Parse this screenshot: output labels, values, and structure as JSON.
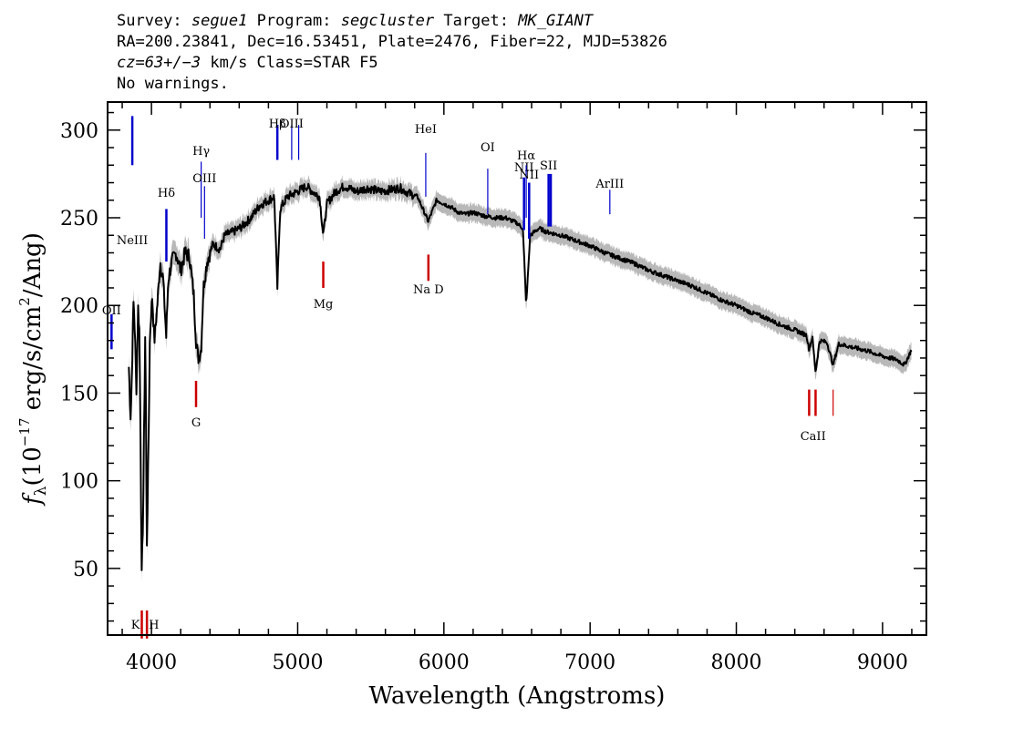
{
  "header": {
    "line1": {
      "survey_label": "Survey:",
      "survey": "segue1",
      "program_label": "Program:",
      "program": "segcluster",
      "target_label": "Target:",
      "target": "MK_GIANT"
    },
    "line2": "RA=200.23841, Dec=16.53451, Plate=2476, Fiber=22, MJD=53826",
    "line3": {
      "cz": "cz=63+/−3",
      "rest": "km/s Class=STAR F5"
    },
    "line4": "No warnings."
  },
  "chart_data": {
    "type": "line",
    "xlabel": "Wavelength (Angstroms)",
    "ylabel": "f_λ (10^-17 erg/s/cm^2/Ang)",
    "ylabel_parts": {
      "symbol": "f",
      "sub": "λ",
      "pre": "(10",
      "exp": "−17",
      "mid": " erg/s/cm",
      "exp2": "2",
      "post": "/Ang)"
    },
    "xlim": [
      3700,
      9300
    ],
    "ylim": [
      12,
      316
    ],
    "x_ticks": [
      4000,
      5000,
      6000,
      7000,
      8000,
      9000
    ],
    "y_ticks": [
      50,
      100,
      150,
      200,
      250,
      300
    ],
    "colors": {
      "flux": "#000000",
      "error_band": "#b8b8b8",
      "emission": "#0000cc",
      "absorption": "#cc0000"
    },
    "series": [
      {
        "values": [
          [
            3845,
            165
          ],
          [
            3858,
            135
          ],
          [
            3868,
            168
          ],
          [
            3878,
            205
          ],
          [
            3888,
            180
          ],
          [
            3898,
            150
          ],
          [
            3908,
            200
          ],
          [
            3918,
            185
          ],
          [
            3926,
            120
          ],
          [
            3933,
            45
          ],
          [
            3943,
            80
          ],
          [
            3958,
            190
          ],
          [
            3968,
            60
          ],
          [
            3978,
            110
          ],
          [
            3990,
            185
          ],
          [
            4005,
            205
          ],
          [
            4020,
            180
          ],
          [
            4040,
            200
          ],
          [
            4060,
            225
          ],
          [
            4080,
            215
          ],
          [
            4101,
            182
          ],
          [
            4115,
            215
          ],
          [
            4140,
            225
          ],
          [
            4170,
            230
          ],
          [
            4200,
            220
          ],
          [
            4230,
            230
          ],
          [
            4260,
            228
          ],
          [
            4290,
            205
          ],
          [
            4305,
            180
          ],
          [
            4320,
            170
          ],
          [
            4340,
            175
          ],
          [
            4355,
            210
          ],
          [
            4380,
            225
          ],
          [
            4420,
            235
          ],
          [
            4470,
            232
          ],
          [
            4500,
            240
          ],
          [
            4560,
            242
          ],
          [
            4620,
            245
          ],
          [
            4680,
            250
          ],
          [
            4740,
            257
          ],
          [
            4800,
            260
          ],
          [
            4840,
            262
          ],
          [
            4861,
            210
          ],
          [
            4880,
            255
          ],
          [
            4930,
            262
          ],
          [
            5000,
            265
          ],
          [
            5060,
            268
          ],
          [
            5100,
            265
          ],
          [
            5150,
            262
          ],
          [
            5175,
            240
          ],
          [
            5200,
            258
          ],
          [
            5260,
            265
          ],
          [
            5320,
            268
          ],
          [
            5400,
            265
          ],
          [
            5480,
            267
          ],
          [
            5560,
            265
          ],
          [
            5640,
            266
          ],
          [
            5700,
            267
          ],
          [
            5760,
            264
          ],
          [
            5820,
            262
          ],
          [
            5893,
            248
          ],
          [
            5950,
            260
          ],
          [
            6000,
            258
          ],
          [
            6050,
            256
          ],
          [
            6100,
            253
          ],
          [
            6150,
            252
          ],
          [
            6200,
            253
          ],
          [
            6280,
            251
          ],
          [
            6350,
            250
          ],
          [
            6420,
            250
          ],
          [
            6500,
            247
          ],
          [
            6540,
            244
          ],
          [
            6563,
            200
          ],
          [
            6590,
            240
          ],
          [
            6650,
            244
          ],
          [
            6700,
            242
          ],
          [
            6800,
            240
          ],
          [
            6900,
            237
          ],
          [
            7000,
            234
          ],
          [
            7100,
            230
          ],
          [
            7200,
            227
          ],
          [
            7300,
            224
          ],
          [
            7400,
            220
          ],
          [
            7500,
            217
          ],
          [
            7600,
            214
          ],
          [
            7700,
            211
          ],
          [
            7800,
            207
          ],
          [
            7900,
            203
          ],
          [
            8000,
            200
          ],
          [
            8100,
            196
          ],
          [
            8200,
            193
          ],
          [
            8300,
            189
          ],
          [
            8400,
            186
          ],
          [
            8480,
            183
          ],
          [
            8498,
            175
          ],
          [
            8520,
            182
          ],
          [
            8542,
            162
          ],
          [
            8570,
            180
          ],
          [
            8620,
            179
          ],
          [
            8662,
            166
          ],
          [
            8700,
            178
          ],
          [
            8800,
            176
          ],
          [
            8900,
            174
          ],
          [
            9000,
            171
          ],
          [
            9100,
            169
          ],
          [
            9150,
            166
          ],
          [
            9200,
            175
          ]
        ]
      }
    ],
    "emission_lines": [
      {
        "label": "OII",
        "x": 3727
      },
      {
        "label": "NeIII",
        "x": 3869
      },
      {
        "label": "Hδ",
        "x": 4102
      },
      {
        "label": "Hγ",
        "x": 4340
      },
      {
        "label": "OIII",
        "x": 4363
      },
      {
        "label": "Hβ",
        "x": 4861
      },
      {
        "label": "OIII",
        "x": 4959
      },
      {
        "label": "OIII",
        "x": 5007
      },
      {
        "label": "HeI",
        "x": 5876
      },
      {
        "label": "OI",
        "x": 6300
      },
      {
        "label": "NII",
        "x": 6548
      },
      {
        "label": "Hα",
        "x": 6563
      },
      {
        "label": "NII",
        "x": 6583
      },
      {
        "label": "SII",
        "x": 6716
      },
      {
        "label": "SII",
        "x": 6731
      },
      {
        "label": "ArIII",
        "x": 7135
      }
    ],
    "absorption_lines": [
      {
        "label": "K",
        "x": 3934
      },
      {
        "label": "H",
        "x": 3969
      },
      {
        "label": "G",
        "x": 4305
      },
      {
        "label": "Mg",
        "x": 5175
      },
      {
        "label": "Na D",
        "x": 5894
      },
      {
        "label": "CaII",
        "x": 8498
      },
      {
        "label": "CaII",
        "x": 8542
      },
      {
        "label": "CaII",
        "x": 8662
      }
    ]
  }
}
